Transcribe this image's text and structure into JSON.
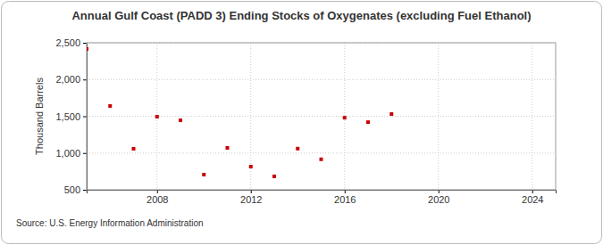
{
  "chart_data": {
    "type": "scatter",
    "title": "Annual Gulf Coast (PADD 3) Ending Stocks of Oxygenates (excluding Fuel Ethanol)",
    "y_label": "Thousand Barrels",
    "annotations": [
      "Source: U.S. Energy Information Administration"
    ],
    "x": [
      2005,
      2006,
      2007,
      2008,
      2009,
      2010,
      2011,
      2012,
      2013,
      2014,
      2015,
      2016,
      2017,
      2018
    ],
    "values": [
      2415,
      1640,
      1058,
      1494,
      1445,
      706,
      1070,
      815,
      682,
      1060,
      915,
      1480,
      1420,
      1530
    ],
    "color": "#cc0000",
    "marker": "square",
    "xlim": [
      2005,
      2025
    ],
    "xticks": [
      2008,
      2012,
      2016,
      2020,
      2024
    ],
    "ylim": [
      500,
      2500
    ],
    "yticks": [
      {
        "value": 500,
        "label": "500"
      },
      {
        "value": 1000,
        "label": "1,000"
      },
      {
        "value": 1500,
        "label": "1,500"
      },
      {
        "value": 2000,
        "label": "2,000"
      },
      {
        "value": 2500,
        "label": "2,500"
      }
    ],
    "grid": true
  }
}
